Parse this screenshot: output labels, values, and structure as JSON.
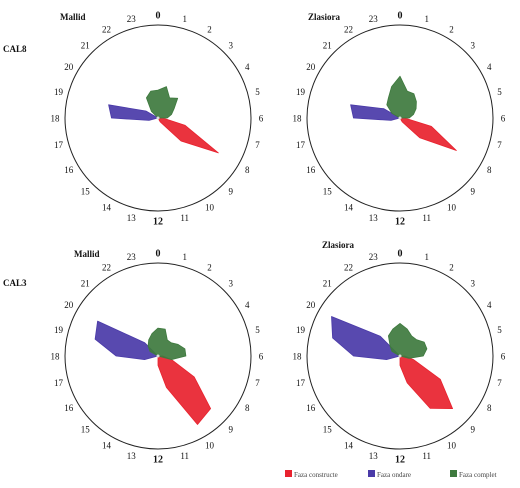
{
  "row_labels": [
    "CAL8",
    "CAL3"
  ],
  "legend": [
    {
      "label": "Faza constructe",
      "color": "#e8222e"
    },
    {
      "label": "Faza ondare",
      "color": "#4a3aa8"
    },
    {
      "label": "Faza complet",
      "color": "#3e7a3e"
    }
  ],
  "chart_data": [
    {
      "type": "radar",
      "title": "Mallid",
      "row": "CAL8",
      "axis": [
        "0",
        "1",
        "2",
        "3",
        "4",
        "5",
        "6",
        "7",
        "8",
        "9",
        "10",
        "11",
        "12",
        "13",
        "14",
        "15",
        "16",
        "17",
        "18",
        "19",
        "20",
        "21",
        "22",
        "23"
      ],
      "series": [
        {
          "name": "Faza constructe",
          "color": "#e8222e",
          "values": [
            0,
            0,
            0,
            0,
            0,
            0,
            0.05,
            0.3,
            0.75,
            0.35,
            0.05,
            0,
            0,
            0,
            0,
            0,
            0,
            0,
            0,
            0,
            0,
            0,
            0,
            0
          ]
        },
        {
          "name": "Faza ondare",
          "color": "#4a3aa8",
          "values": [
            0,
            0,
            0,
            0,
            0,
            0,
            0,
            0,
            0,
            0,
            0,
            0,
            0,
            0,
            0,
            0,
            0,
            0.1,
            0.5,
            0.55,
            0.15,
            0,
            0,
            0
          ]
        },
        {
          "name": "Faza complet",
          "color": "#3e7a3e",
          "values": [
            0.3,
            0.35,
            0.25,
            0.3,
            0.2,
            0.15,
            0.1,
            0,
            0,
            0,
            0,
            0,
            0,
            0,
            0,
            0,
            0,
            0,
            0,
            0,
            0,
            0.1,
            0.25,
            0.3
          ]
        }
      ]
    },
    {
      "type": "radar",
      "title": "Zlasiora",
      "row": "CAL8",
      "axis": [
        "0",
        "1",
        "2",
        "3",
        "4",
        "5",
        "6",
        "7",
        "8",
        "9",
        "10",
        "11",
        "12",
        "13",
        "14",
        "15",
        "16",
        "17",
        "18",
        "19",
        "20",
        "21",
        "22",
        "23"
      ],
      "series": [
        {
          "name": "Faza constructe",
          "color": "#e8222e",
          "values": [
            0,
            0,
            0,
            0,
            0,
            0,
            0.05,
            0.35,
            0.7,
            0.3,
            0.05,
            0,
            0,
            0,
            0,
            0,
            0,
            0,
            0,
            0,
            0,
            0,
            0,
            0
          ]
        },
        {
          "name": "Faza ondare",
          "color": "#4a3aa8",
          "values": [
            0,
            0,
            0,
            0,
            0,
            0,
            0,
            0,
            0,
            0,
            0,
            0,
            0,
            0,
            0,
            0,
            0,
            0.1,
            0.5,
            0.55,
            0.2,
            0,
            0,
            0
          ]
        },
        {
          "name": "Faza complet",
          "color": "#3e7a3e",
          "values": [
            0.45,
            0.3,
            0.3,
            0.25,
            0.2,
            0.15,
            0.1,
            0,
            0,
            0,
            0,
            0,
            0,
            0,
            0,
            0,
            0,
            0,
            0,
            0,
            0.1,
            0.2,
            0.25,
            0.35
          ]
        }
      ]
    },
    {
      "type": "radar",
      "title": "Mallid",
      "row": "CAL3",
      "axis": [
        "0",
        "1",
        "2",
        "3",
        "4",
        "5",
        "6",
        "7",
        "8",
        "9",
        "10",
        "11",
        "12",
        "13",
        "14",
        "15",
        "16",
        "17",
        "18",
        "19",
        "20",
        "21",
        "22",
        "23"
      ],
      "series": [
        {
          "name": "Faza constructe",
          "color": "#e8222e",
          "values": [
            0,
            0,
            0,
            0,
            0,
            0,
            0.05,
            0.15,
            0.45,
            0.8,
            0.85,
            0.35,
            0.1,
            0,
            0,
            0,
            0,
            0,
            0,
            0,
            0,
            0,
            0,
            0
          ]
        },
        {
          "name": "Faza ondare",
          "color": "#4a3aa8",
          "values": [
            0,
            0,
            0,
            0,
            0,
            0,
            0,
            0,
            0,
            0,
            0,
            0,
            0,
            0,
            0,
            0,
            0,
            0.15,
            0.45,
            0.7,
            0.75,
            0.2,
            0,
            0
          ]
        },
        {
          "name": "Faza complet",
          "color": "#3e7a3e",
          "values": [
            0.3,
            0.3,
            0.2,
            0.2,
            0.25,
            0.3,
            0.3,
            0.15,
            0,
            0,
            0,
            0,
            0,
            0,
            0,
            0,
            0,
            0,
            0,
            0,
            0.1,
            0.15,
            0.2,
            0.25
          ]
        }
      ]
    },
    {
      "type": "radar",
      "title": "Zlasiora",
      "row": "CAL3",
      "axis": [
        "0",
        "1",
        "2",
        "3",
        "4",
        "5",
        "6",
        "7",
        "8",
        "9",
        "10",
        "11",
        "12",
        "13",
        "14",
        "15",
        "16",
        "17",
        "18",
        "19",
        "20",
        "21",
        "22",
        "23"
      ],
      "series": [
        {
          "name": "Faza constructe",
          "color": "#e8222e",
          "values": [
            0,
            0,
            0,
            0,
            0,
            0,
            0.05,
            0.15,
            0.5,
            0.8,
            0.65,
            0.3,
            0.1,
            0,
            0,
            0,
            0,
            0,
            0,
            0,
            0,
            0,
            0,
            0
          ]
        },
        {
          "name": "Faza ondare",
          "color": "#4a3aa8",
          "values": [
            0,
            0,
            0,
            0,
            0,
            0,
            0,
            0,
            0,
            0,
            0,
            0,
            0,
            0,
            0,
            0,
            0,
            0.15,
            0.5,
            0.75,
            0.85,
            0.3,
            0,
            0
          ]
        },
        {
          "name": "Faza complet",
          "color": "#3e7a3e",
          "values": [
            0.35,
            0.3,
            0.25,
            0.25,
            0.3,
            0.3,
            0.25,
            0.1,
            0,
            0,
            0,
            0,
            0,
            0,
            0,
            0,
            0,
            0,
            0,
            0,
            0.1,
            0.15,
            0.25,
            0.3
          ]
        }
      ]
    }
  ]
}
